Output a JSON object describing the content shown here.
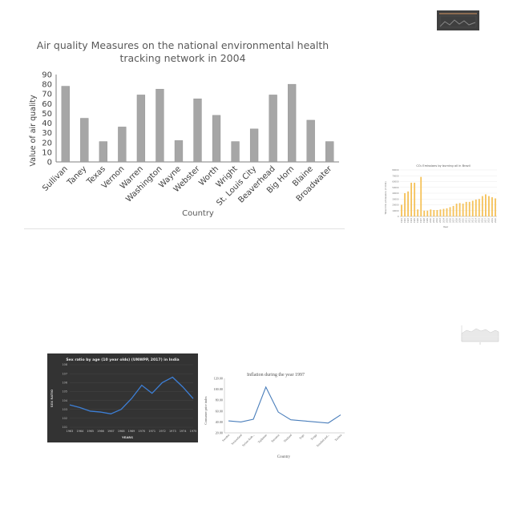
{
  "chart_data": [
    {
      "type": "bar",
      "title": "Air quality Measures on the national environmental health tracking network in 2004",
      "title_lines": [
        "Air quality Measures on the national environmental health",
        "tracking network in 2004"
      ],
      "xlabel": "Country",
      "ylabel": "Value of air quality",
      "ylim": [
        0,
        90
      ],
      "yticks": [
        0,
        10,
        20,
        30,
        40,
        50,
        60,
        70,
        80,
        90
      ],
      "categories": [
        "Sullivan",
        "Taney",
        "Texas",
        "Vernon",
        "Warren",
        "Washington",
        "Wayne",
        "Webster",
        "Worth",
        "Wright",
        "St. Louis City",
        "Beaverhead",
        "Big Horn",
        "Blaine",
        "Broadwater"
      ],
      "values": [
        78,
        45,
        21,
        36,
        69,
        75,
        22,
        65,
        48,
        21,
        34,
        69,
        80,
        43,
        21
      ],
      "grid": false,
      "bar_color": "#a6a6a6"
    },
    {
      "type": "bar",
      "title": "CO₂ Emissions by burning oil in Brazil",
      "xlabel": "Year",
      "ylabel": "Total CO₂ emissions (t CO2)",
      "ylim": [
        0,
        80000
      ],
      "yticks": [
        0,
        10000,
        20000,
        30000,
        40000,
        50000,
        60000,
        70000,
        80000
      ],
      "categories": [
        "1991",
        "1992",
        "1993",
        "1994",
        "1995",
        "1996",
        "1997",
        "1998",
        "1999",
        "2000",
        "2001",
        "2002",
        "2003",
        "2004",
        "2005",
        "2006",
        "2007",
        "2008",
        "2009",
        "2010",
        "2011",
        "2012",
        "2013",
        "2014",
        "2015",
        "2016",
        "2017",
        "2018",
        "2019",
        "2020"
      ],
      "values": [
        20000,
        40000,
        43000,
        58000,
        58000,
        12000,
        68000,
        10000,
        10000,
        12000,
        11000,
        11000,
        12000,
        13000,
        14000,
        16000,
        18000,
        22000,
        23000,
        22000,
        25000,
        25000,
        27000,
        29000,
        30000,
        35000,
        38000,
        35000,
        33000,
        31000
      ],
      "grid": true,
      "bar_color": "#f5c25a"
    },
    {
      "type": "line",
      "title": "Sex ratio by age (10 year olds) (UNWPP, 2017) in India",
      "xlabel": "YEARS",
      "ylabel": "SEX RATIO",
      "ylim": [
        1010,
        1080
      ],
      "yticks": [
        1010,
        1020,
        1030,
        1040,
        1050,
        1060,
        1070,
        1080
      ],
      "ytick_labels": [
        "101",
        "102",
        "103",
        "104",
        "105",
        "106",
        "107",
        "108"
      ],
      "x": [
        "1963",
        "1964",
        "1965",
        "1966",
        "1967",
        "1968",
        "1969",
        "1970",
        "1971",
        "1972",
        "1973",
        "1974",
        "1975"
      ],
      "values": [
        1035,
        1032,
        1028,
        1027,
        1025,
        1030,
        1042,
        1057,
        1048,
        1060,
        1066,
        1055,
        1042
      ],
      "grid": true,
      "line_color": "#3d7fd6",
      "background": "#333333"
    },
    {
      "type": "line",
      "title": "Inflation during the year 1997",
      "xlabel": "Country",
      "ylabel": "Consumer price index",
      "ylim": [
        20,
        120
      ],
      "yticks": [
        20,
        40,
        60,
        80,
        100,
        120
      ],
      "ytick_labels": [
        "20.00",
        "40.00",
        "60.00",
        "80.00",
        "100.00",
        "120.00"
      ],
      "categories": [
        "Sweden",
        "Switzerland",
        "Syrian Arab...",
        "Tajikistan",
        "Tanzania",
        "Thailand",
        "Togo",
        "Tonga",
        "Trinidad and...",
        "Tunisia"
      ],
      "values": [
        42,
        40,
        45,
        104,
        58,
        44,
        42,
        40,
        38,
        53
      ],
      "grid": false,
      "line_color": "#4a7ebb"
    }
  ]
}
